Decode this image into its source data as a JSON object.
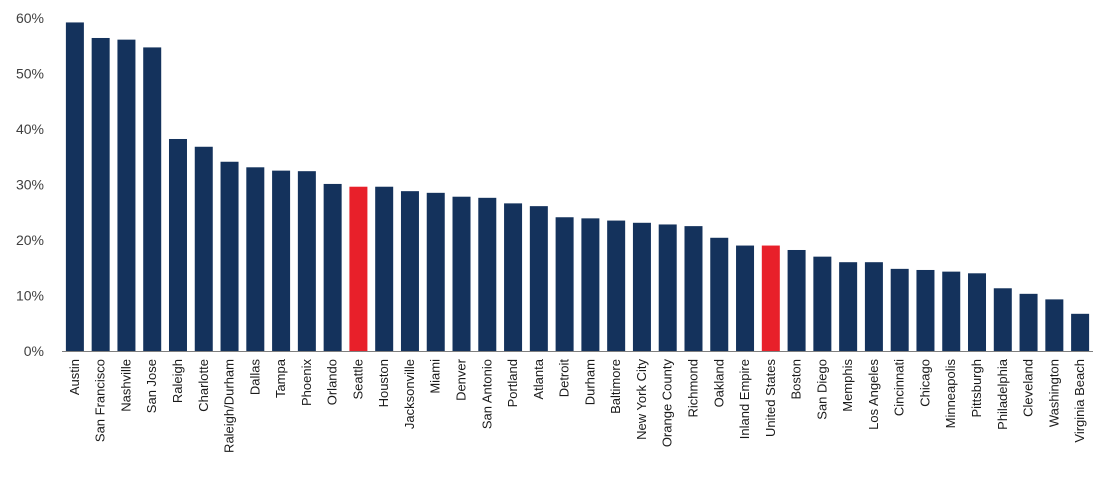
{
  "chart_data": {
    "type": "bar",
    "title": "",
    "xlabel": "",
    "ylabel": "",
    "ylim": [
      0,
      60
    ],
    "y_ticks": [
      0,
      10,
      20,
      30,
      40,
      50,
      60
    ],
    "y_tick_format": "percent",
    "grid": false,
    "legend": "none",
    "colors": {
      "default": "#14325c",
      "highlight": "#e8202a",
      "axis": "#7f7f7f"
    },
    "highlight_categories": [
      "Seattle",
      "United States"
    ],
    "categories": [
      "Austin",
      "San Francisco",
      "Nashville",
      "San Jose",
      "Raleigh",
      "Charlotte",
      "Raleigh/Durham",
      "Dallas",
      "Tampa",
      "Phoenix",
      "Orlando",
      "Seattle",
      "Houston",
      "Jacksonville",
      "Miami",
      "Denver",
      "San Antonio",
      "Portland",
      "Atlanta",
      "Detroit",
      "Durham",
      "Baltimore",
      "New York City",
      "Orange County",
      "Richmond",
      "Oakland",
      "Inland Empire",
      "United States",
      "Boston",
      "San Diego",
      "Memphis",
      "Los Angeles",
      "Cincinnati",
      "Chicago",
      "Minneapolis",
      "Pittsburgh",
      "Philadelphia",
      "Cleveland",
      "Washington",
      "Virginia Beach"
    ],
    "values": [
      59.2,
      56.4,
      56.1,
      54.7,
      38.2,
      36.8,
      34.1,
      33.1,
      32.5,
      32.4,
      30.1,
      29.6,
      29.6,
      28.8,
      28.5,
      27.8,
      27.6,
      26.6,
      26.1,
      24.1,
      23.9,
      23.5,
      23.1,
      22.8,
      22.5,
      20.4,
      19.0,
      19.0,
      18.2,
      17.0,
      16.0,
      16.0,
      14.8,
      14.6,
      14.3,
      14.0,
      11.3,
      10.3,
      9.3,
      6.7
    ]
  }
}
